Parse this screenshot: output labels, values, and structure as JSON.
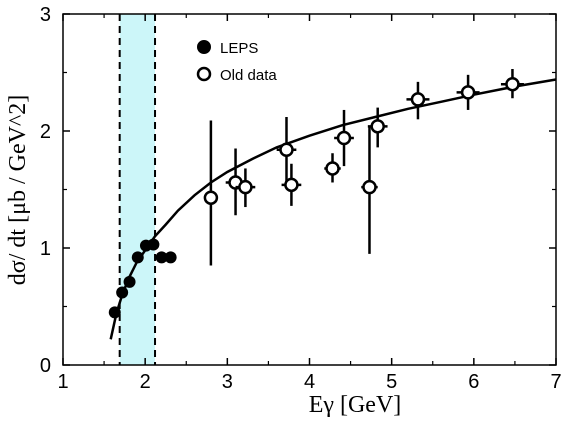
{
  "chart_data": {
    "type": "scatter",
    "xlabel": "Eγ [GeV]",
    "ylabel": "dσ/ dt [μb / GeV^2]",
    "xlim": [
      1,
      7
    ],
    "ylim": [
      0,
      3
    ],
    "x_ticks": [
      "1",
      "2",
      "3",
      "4",
      "5",
      "6",
      "7"
    ],
    "y_ticks": [
      "0",
      "1",
      "2",
      "3"
    ],
    "grid": false,
    "legend_position": "top-left inside plot",
    "shaded_band": {
      "x_range": [
        1.69,
        2.12
      ],
      "color": "#ccf6f9",
      "border_style": "dashed"
    },
    "series": [
      {
        "name": "LEPS",
        "marker": "filled-circle",
        "color": "#000000",
        "points": [
          {
            "x": 1.63,
            "y": 0.45
          },
          {
            "x": 1.72,
            "y": 0.62
          },
          {
            "x": 1.81,
            "y": 0.71
          },
          {
            "x": 1.91,
            "y": 0.92
          },
          {
            "x": 2.01,
            "y": 1.02
          },
          {
            "x": 2.1,
            "y": 1.03
          },
          {
            "x": 2.2,
            "y": 0.92
          },
          {
            "x": 2.31,
            "y": 0.92
          }
        ]
      },
      {
        "name": "Old data",
        "marker": "open-circle",
        "color": "#000000",
        "points": [
          {
            "x": 2.8,
            "y": 1.43,
            "xerr": 0.0,
            "ylo": 0.85,
            "yhi": 2.09
          },
          {
            "x": 3.1,
            "y": 1.56,
            "xerr": 0.12,
            "ylo": 1.28,
            "yhi": 1.85
          },
          {
            "x": 3.22,
            "y": 1.52,
            "xerr": 0.12,
            "ylo": 1.35,
            "yhi": 1.68
          },
          {
            "x": 3.72,
            "y": 1.84,
            "xerr": 0.12,
            "ylo": 1.55,
            "yhi": 2.12
          },
          {
            "x": 3.78,
            "y": 1.54,
            "xerr": 0.12,
            "ylo": 1.36,
            "yhi": 1.72
          },
          {
            "x": 4.28,
            "y": 1.68,
            "xerr": 0.1,
            "ylo": 1.56,
            "yhi": 1.81
          },
          {
            "x": 4.42,
            "y": 1.94,
            "xerr": 0.12,
            "ylo": 1.7,
            "yhi": 2.18
          },
          {
            "x": 4.73,
            "y": 1.52,
            "xerr": 0.1,
            "ylo": 0.95,
            "yhi": 2.03
          },
          {
            "x": 4.83,
            "y": 2.04,
            "xerr": 0.12,
            "ylo": 1.86,
            "yhi": 2.2
          },
          {
            "x": 5.32,
            "y": 2.27,
            "xerr": 0.14,
            "ylo": 2.1,
            "yhi": 2.42
          },
          {
            "x": 5.93,
            "y": 2.33,
            "xerr": 0.14,
            "ylo": 2.18,
            "yhi": 2.48
          },
          {
            "x": 6.47,
            "y": 2.4,
            "xerr": 0.14,
            "ylo": 2.28,
            "yhi": 2.53
          }
        ]
      },
      {
        "name": "",
        "type": "line",
        "color": "#000000",
        "x": [
          1.58,
          1.65,
          1.72,
          1.8,
          1.9,
          2.0,
          2.12,
          2.25,
          2.4,
          2.6,
          2.8,
          3.0,
          3.3,
          3.6,
          4.0,
          4.4,
          4.8,
          5.2,
          5.6,
          6.0,
          6.5,
          7.0
        ],
        "values": [
          0.22,
          0.44,
          0.6,
          0.74,
          0.88,
          0.98,
          1.1,
          1.2,
          1.32,
          1.45,
          1.56,
          1.65,
          1.76,
          1.86,
          1.96,
          2.05,
          2.12,
          2.19,
          2.25,
          2.31,
          2.38,
          2.44
        ]
      }
    ]
  }
}
